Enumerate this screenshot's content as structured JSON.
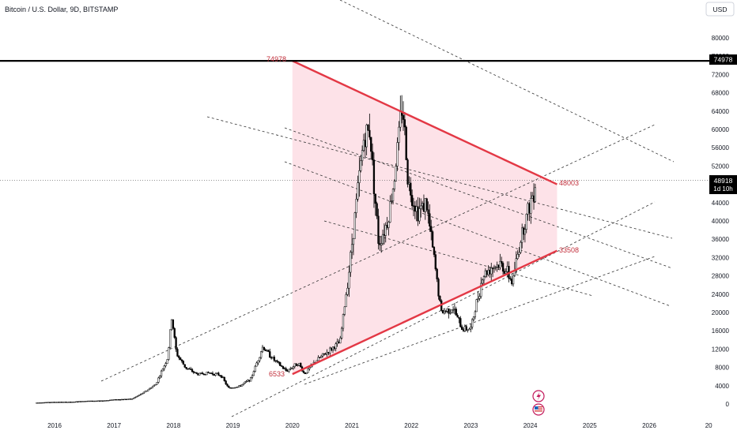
{
  "header": {
    "symbol_title": "Bitcoin / U.S. Dollar, 9D, BITSTAMP"
  },
  "currency_button": {
    "label": "USD"
  },
  "price_tag": {
    "value": "48918",
    "countdown": "1d 10h"
  },
  "resistance_tag": {
    "value": "74978"
  },
  "colors": {
    "candle": "#000000",
    "triangle_fill": "#fde2e8",
    "triangle_edge": "#e33845",
    "label_text": "#c2303c",
    "horizontal_line": "#000000",
    "channel_line": "#333333"
  },
  "icons": [
    "lightning-icon",
    "us-flag-icon"
  ],
  "chart_data": {
    "type": "candlestick",
    "x_ticks": [
      "2016",
      "2017",
      "2018",
      "2019",
      "2020",
      "2021",
      "2022",
      "2023",
      "2024",
      "2025",
      "2026",
      "20"
    ],
    "y_ticks": [
      "80000",
      "76000",
      "72000",
      "68000",
      "64000",
      "60000",
      "56000",
      "52000",
      "48000",
      "44000",
      "40000",
      "36000",
      "32000",
      "28000",
      "24000",
      "20000",
      "16000",
      "12000",
      "8000",
      "4000",
      "0"
    ],
    "y_range": [
      0,
      84000
    ],
    "series_close": [
      [
        "2015.7",
        280
      ],
      [
        "2016.0",
        430
      ],
      [
        "2016.3",
        450
      ],
      [
        "2016.5",
        650
      ],
      [
        "2016.8",
        700
      ],
      [
        "2017.0",
        960
      ],
      [
        "2017.3",
        1100
      ],
      [
        "2017.5",
        2500
      ],
      [
        "2017.7",
        4300
      ],
      [
        "2017.9",
        10000
      ],
      [
        "2017.97",
        19000
      ],
      [
        "2018.05",
        11000
      ],
      [
        "2018.2",
        8000
      ],
      [
        "2018.4",
        6500
      ],
      [
        "2018.6",
        6800
      ],
      [
        "2018.8",
        6300
      ],
      [
        "2018.92",
        3500
      ],
      [
        "2019.1",
        3800
      ],
      [
        "2019.3",
        5500
      ],
      [
        "2019.5",
        12500
      ],
      [
        "2019.7",
        9500
      ],
      [
        "2019.9",
        7200
      ],
      [
        "2020.1",
        9000
      ],
      [
        "2020.2",
        6533
      ],
      [
        "2020.4",
        9500
      ],
      [
        "2020.6",
        11500
      ],
      [
        "2020.8",
        13500
      ],
      [
        "2020.95",
        29000
      ],
      [
        "2021.1",
        47000
      ],
      [
        "2021.2",
        58000
      ],
      [
        "2021.3",
        60000
      ],
      [
        "2021.45",
        35000
      ],
      [
        "2021.6",
        40000
      ],
      [
        "2021.7",
        48000
      ],
      [
        "2021.85",
        66000
      ],
      [
        "2021.95",
        48000
      ],
      [
        "2022.1",
        42000
      ],
      [
        "2022.25",
        44000
      ],
      [
        "2022.4",
        30000
      ],
      [
        "2022.5",
        20000
      ],
      [
        "2022.7",
        21000
      ],
      [
        "2022.85",
        16500
      ],
      [
        "2023.0",
        16500
      ],
      [
        "2023.2",
        28000
      ],
      [
        "2023.35",
        30000
      ],
      [
        "2023.5",
        30500
      ],
      [
        "2023.6",
        29000
      ],
      [
        "2023.7",
        26500
      ],
      [
        "2023.85",
        37000
      ],
      [
        "2024.0",
        44000
      ],
      [
        "2024.1",
        48918
      ]
    ],
    "annotations": [
      {
        "text": "74978",
        "kind": "triangle-apex-high"
      },
      {
        "text": "6533",
        "kind": "triangle-apex-low"
      },
      {
        "text": "48003",
        "kind": "upper-trendline-end"
      },
      {
        "text": "33508",
        "kind": "lower-trendline-end"
      }
    ],
    "horizontal_level": 74978,
    "last_price": 48918,
    "grid": false,
    "legend": "none"
  }
}
